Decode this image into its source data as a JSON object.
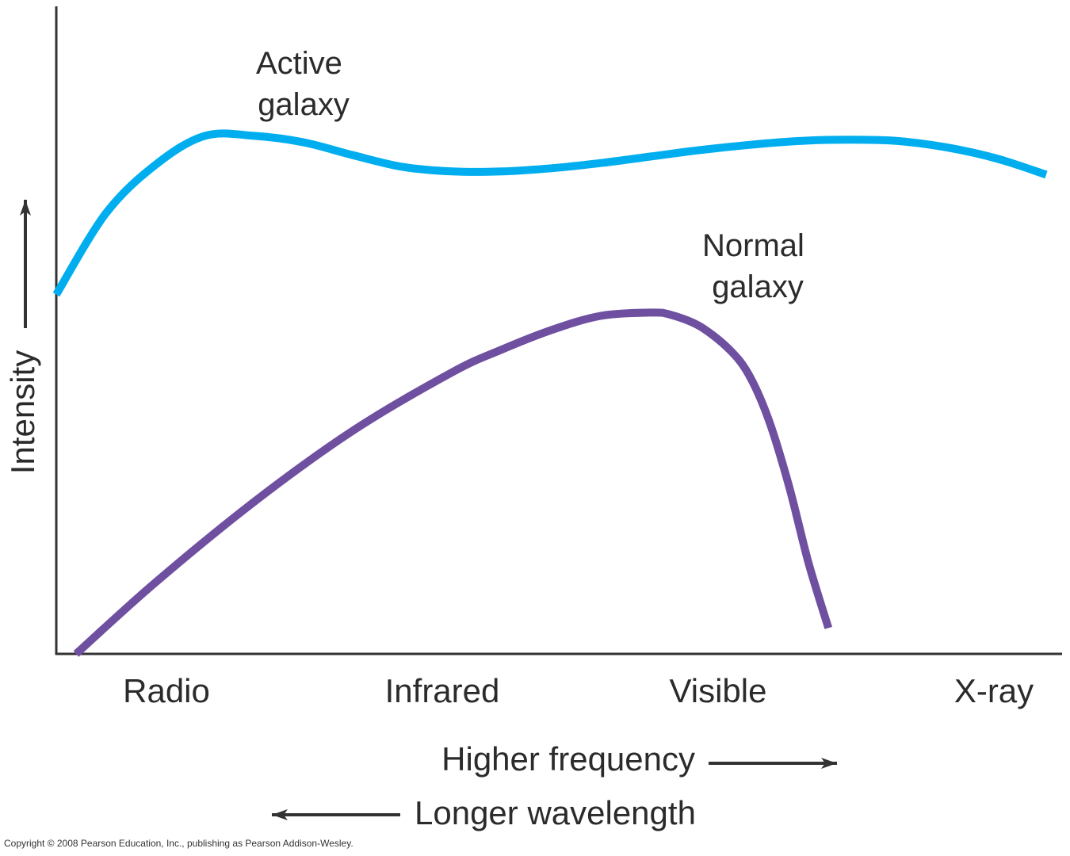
{
  "chart_data": {
    "type": "line",
    "title": "",
    "xlabel": "Higher frequency",
    "xlabel_secondary": "Longer wavelength",
    "ylabel": "Intensity",
    "categories": [
      "Radio",
      "Infrared",
      "Visible",
      "X-ray"
    ],
    "xlim": [
      0,
      1
    ],
    "ylim": [
      0,
      1
    ],
    "grid": false,
    "colors": {
      "active": "#00aeef",
      "normal": "#6f4fa0",
      "axis": "#333333",
      "text": "#2b2b2b"
    },
    "series": [
      {
        "name": "Active galaxy",
        "label_lines": [
          "Active",
          "galaxy"
        ],
        "color": "#00aeef",
        "x": [
          0.0,
          0.05,
          0.1,
          0.15,
          0.2,
          0.25,
          0.3,
          0.35,
          0.4,
          0.45,
          0.5,
          0.55,
          0.6,
          0.65,
          0.7,
          0.75,
          0.8,
          0.85,
          0.9,
          0.95,
          1.0
        ],
        "y": [
          0.555,
          0.68,
          0.755,
          0.8,
          0.8,
          0.79,
          0.77,
          0.752,
          0.745,
          0.745,
          0.75,
          0.758,
          0.768,
          0.778,
          0.786,
          0.792,
          0.794,
          0.792,
          0.782,
          0.765,
          0.74
        ]
      },
      {
        "name": "Normal galaxy",
        "label_lines": [
          "Normal",
          "galaxy"
        ],
        "color": "#6f4fa0",
        "x": [
          0.02,
          0.1,
          0.2,
          0.3,
          0.4,
          0.45,
          0.5,
          0.55,
          0.6,
          0.62,
          0.65,
          0.68,
          0.7,
          0.72,
          0.74,
          0.76,
          0.78
        ],
        "y": [
          0.0,
          0.11,
          0.235,
          0.345,
          0.435,
          0.47,
          0.5,
          0.522,
          0.527,
          0.524,
          0.506,
          0.47,
          0.43,
          0.36,
          0.26,
          0.14,
          0.04
        ]
      }
    ]
  },
  "copyright": "Copyright © 2008 Pearson Education, Inc., publishing as Pearson Addison-Wesley."
}
